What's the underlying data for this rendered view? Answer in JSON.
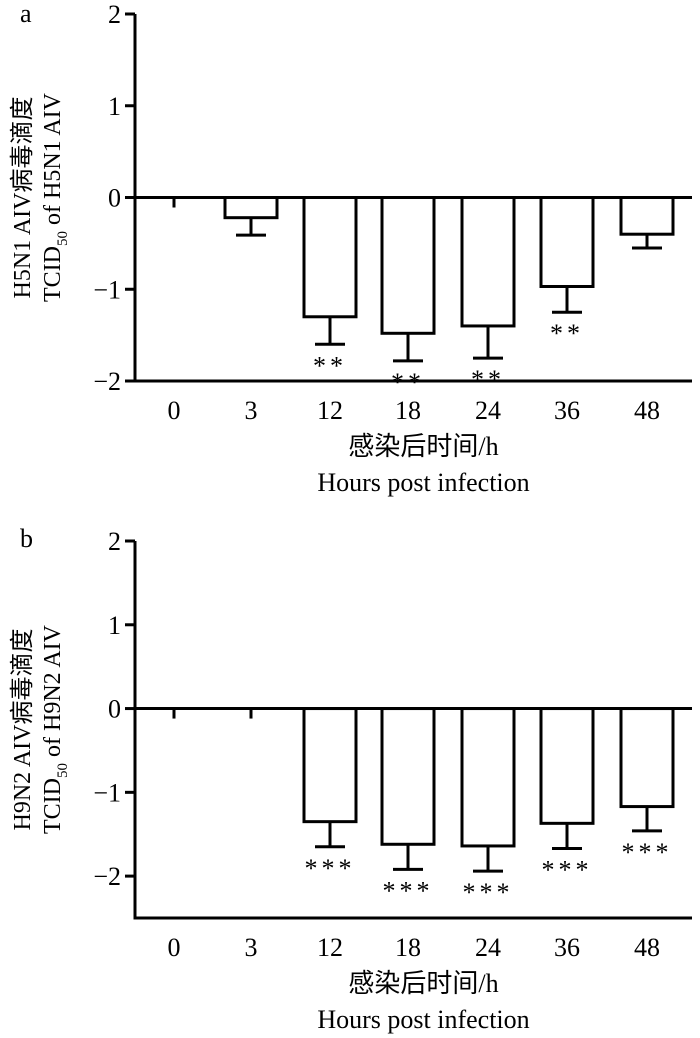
{
  "chart_data": [
    {
      "panel_label": "a",
      "type": "bar",
      "title": "",
      "ylabel_cn": "H5N1 AIV病毒滴度",
      "ylabel_en_pre": "TCID",
      "ylabel_en_sub": "50",
      "ylabel_en_post": " of H5N1 AIV",
      "xlabel_cn": "感染后时间/h",
      "xlabel_en": "Hours post infection",
      "categories": [
        "0",
        "3",
        "12",
        "18",
        "24",
        "36",
        "48"
      ],
      "values": [
        0,
        -0.22,
        -1.3,
        -1.48,
        -1.4,
        -0.97,
        -0.4
      ],
      "error_low": [
        0,
        -0.41,
        -1.6,
        -1.78,
        -1.75,
        -1.25,
        -0.55
      ],
      "significance": [
        "",
        "",
        "**",
        "**",
        "**",
        "**",
        ""
      ],
      "ylim": [
        -2,
        2
      ],
      "yticks": [
        "2",
        "1",
        "0",
        "−1",
        "−2"
      ],
      "ytick_values": [
        2,
        1,
        0,
        -1,
        -2
      ],
      "grid": false,
      "legend": "none"
    },
    {
      "panel_label": "b",
      "type": "bar",
      "title": "",
      "ylabel_cn": "H9N2 AIV病毒滴度",
      "ylabel_en_pre": "TCID",
      "ylabel_en_sub": "50",
      "ylabel_en_post": " of H9N2 AIV",
      "xlabel_cn": "感染后时间/h",
      "xlabel_en": "Hours post infection",
      "categories": [
        "0",
        "3",
        "12",
        "18",
        "24",
        "36",
        "48"
      ],
      "values": [
        0,
        0,
        -1.35,
        -1.62,
        -1.64,
        -1.37,
        -1.17
      ],
      "error_low": [
        0,
        0,
        -1.65,
        -1.92,
        -1.94,
        -1.67,
        -1.46
      ],
      "significance": [
        "",
        "",
        "***",
        "***",
        "***",
        "***",
        "***"
      ],
      "ylim": [
        -2.5,
        2
      ],
      "yticks": [
        "2",
        "1",
        "0",
        "−1",
        "−2"
      ],
      "ytick_values": [
        2,
        1,
        0,
        -1,
        -2
      ],
      "grid": false,
      "legend": "none"
    }
  ]
}
